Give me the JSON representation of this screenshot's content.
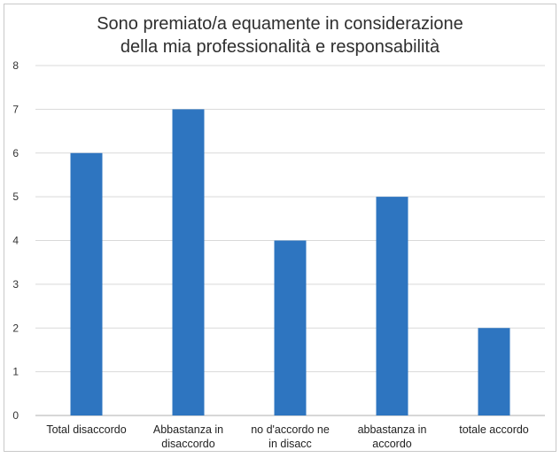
{
  "chart_data": {
    "type": "bar",
    "title": [
      "Sono premiato/a equamente in considerazione",
      "della mia professionalità e responsabilità"
    ],
    "categories": [
      [
        "Total disaccordo"
      ],
      [
        "Abbastanza in",
        "disaccordo"
      ],
      [
        "no d'accordo ne",
        "in disacc"
      ],
      [
        "abbastanza in",
        "accordo"
      ],
      [
        "totale accordo"
      ]
    ],
    "values": [
      6,
      7,
      4,
      5,
      2
    ],
    "ylim": [
      0,
      8
    ],
    "yticks": [
      0,
      1,
      2,
      3,
      4,
      5,
      6,
      7,
      8
    ],
    "xlabel": "",
    "ylabel": "",
    "grid": true,
    "legend": "none",
    "colors": {
      "bar": "#2e75c0",
      "grid": "#d9d9d9",
      "axis": "#bfbfbf"
    }
  }
}
